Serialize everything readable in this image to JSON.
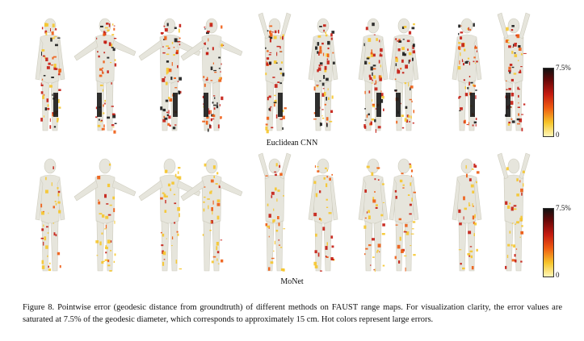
{
  "figure": {
    "top_row_label": "Euclidean CNN",
    "bottom_row_label": "MoNet",
    "colorbar_top": {
      "max_label": "7.5%",
      "min_label": "0"
    },
    "colorbar_bottom": {
      "max_label": "7.5%",
      "min_label": "0"
    },
    "colors": {
      "mesh": "#e6e5dc",
      "hot_dark": "#1a1a1a",
      "hot_red": "#c41a10",
      "hot_orange": "#ee5a10",
      "hot_yellow": "#f6c52a"
    },
    "caption": "Figure 8. Pointwise error (geodesic distance from groundtruth) of different methods on FAUST range maps. For visualization clarity, the error values are saturated at 7.5% of the geodesic diameter, which corresponds to approximately 15 cm. Hot colors represent large errors.",
    "figure_count_per_row": 10
  }
}
